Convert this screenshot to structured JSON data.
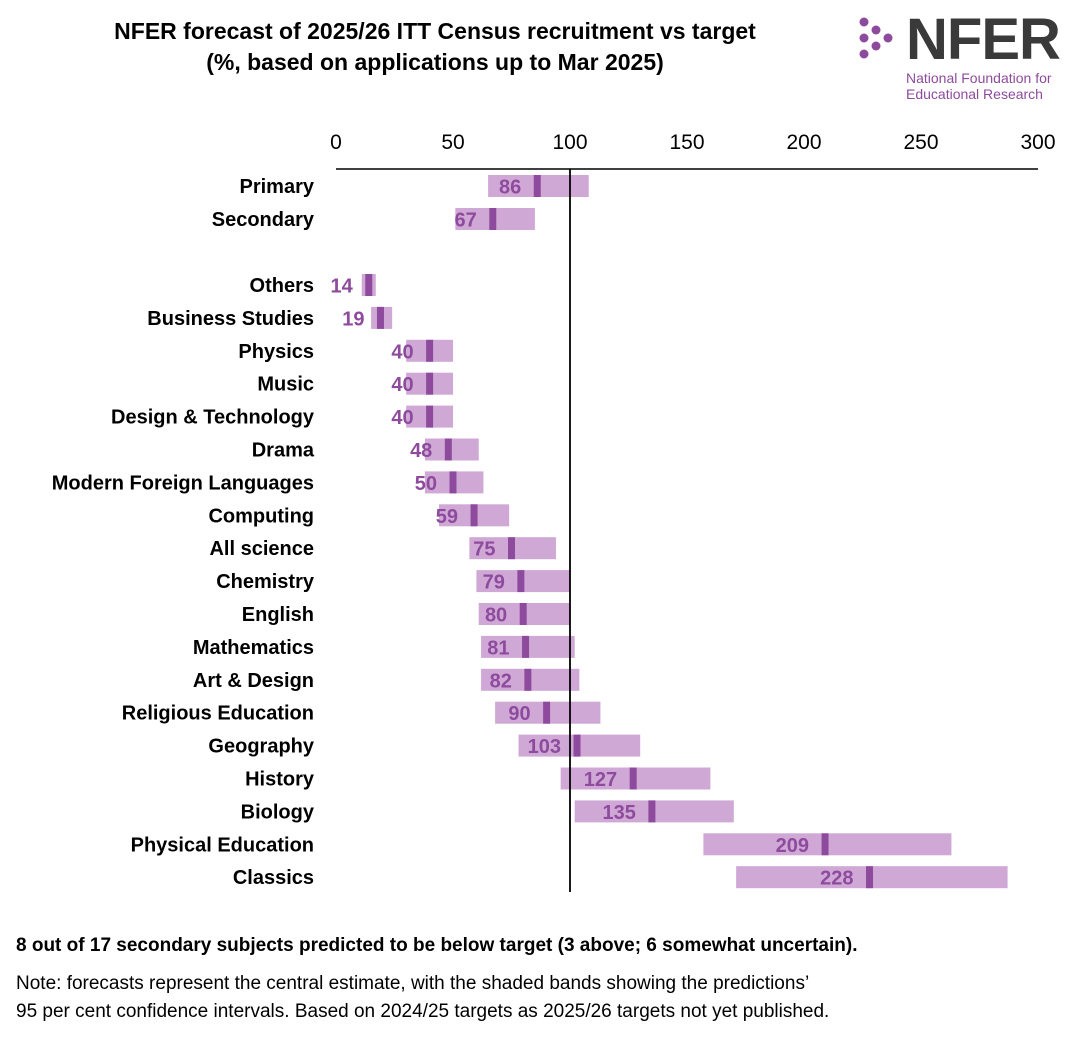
{
  "header": {
    "title_line1": "NFER forecast of 2025/26 ITT Census recruitment vs target",
    "title_line2": "(%, based on applications up to Mar 2025)"
  },
  "logo": {
    "name": "NFER",
    "subtitle_line1": "National Foundation for",
    "subtitle_line2": "Educational Research",
    "brand_color": "#8e4b9e"
  },
  "colors": {
    "band": "#cfa8d6",
    "marker": "#8e4b9e",
    "label": "#8e4b9e"
  },
  "chart_data": {
    "type": "bar",
    "title": "NFER forecast of 2025/26 ITT Census recruitment vs target (%, based on applications up to Mar 2025)",
    "xlim": [
      0,
      300
    ],
    "xticks": [
      0,
      50,
      100,
      150,
      200,
      250,
      300
    ],
    "reference_line": 100,
    "categories": [
      "Primary",
      "Secondary",
      "Others",
      "Business Studies",
      "Physics",
      "Music",
      "Design & Technology",
      "Drama",
      "Modern Foreign Languages",
      "Computing",
      "All science",
      "Chemistry",
      "English",
      "Mathematics",
      "Art & Design",
      "Religious Education",
      "Geography",
      "History",
      "Biology",
      "Physical Education",
      "Classics"
    ],
    "series": [
      {
        "name": "Central estimate",
        "values": [
          86,
          67,
          14,
          19,
          40,
          40,
          40,
          48,
          50,
          59,
          75,
          79,
          80,
          81,
          82,
          90,
          103,
          127,
          135,
          209,
          228
        ]
      },
      {
        "name": "95% CI lower",
        "values": [
          65,
          51,
          11,
          15,
          30,
          30,
          30,
          38,
          38,
          44,
          57,
          60,
          61,
          62,
          62,
          68,
          78,
          96,
          102,
          157,
          171
        ]
      },
      {
        "name": "95% CI upper",
        "values": [
          108,
          85,
          17,
          24,
          50,
          50,
          50,
          61,
          63,
          74,
          94,
          100,
          100,
          102,
          104,
          113,
          130,
          160,
          170,
          263,
          287
        ]
      }
    ]
  },
  "summary": "8 out of 17 secondary subjects predicted to be below target (3 above; 6 somewhat uncertain).",
  "note_line1": "Note: forecasts represent the central estimate, with the shaded bands showing the predictions’",
  "note_line2": "95 per cent confidence intervals. Based on 2024/25 targets as 2025/26 targets not yet published."
}
